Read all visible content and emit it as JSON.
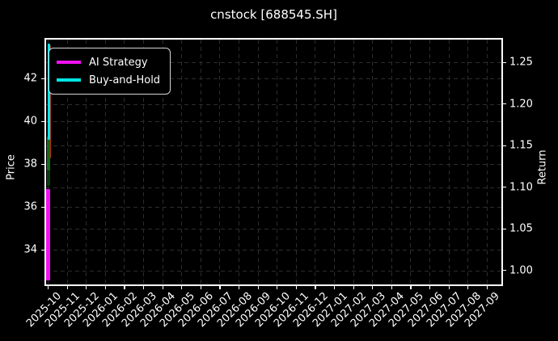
{
  "figure": {
    "title": "cnstock [688545.SH]",
    "background": "#000000",
    "spine_color": "#ffffff",
    "grid_color": "#2d2d2d"
  },
  "axes": {
    "left": {
      "label": "Price",
      "tick_labels": [
        "42",
        "40",
        "38",
        "36",
        "34"
      ]
    },
    "right": {
      "label": "Return",
      "tick_labels": [
        "1.25",
        "1.20",
        "1.15",
        "1.10",
        "1.05",
        "1.00"
      ]
    },
    "x": {
      "tick_labels": [
        "2025-10",
        "2025-11",
        "2025-12",
        "2026-01",
        "2026-02",
        "2026-03",
        "2026-04",
        "2026-05",
        "2026-06",
        "2026-07",
        "2026-08",
        "2026-09",
        "2026-10",
        "2026-11",
        "2026-12",
        "2027-01",
        "2027-02",
        "2027-03",
        "2027-04",
        "2027-05",
        "2027-06",
        "2027-07",
        "2027-08",
        "2027-09"
      ]
    }
  },
  "legend": {
    "items": [
      {
        "label": "AI Strategy",
        "color": "#f411f4"
      },
      {
        "label": "Buy-and-Hold",
        "color": "#00e5e5"
      }
    ]
  },
  "chart_data": {
    "type": "line",
    "title": "cnstock [688545.SH]",
    "grid": true,
    "legend_position": "upper left",
    "x_axis": {
      "range": [
        "2025-10",
        "2027-09"
      ],
      "tick_interval": "1 month"
    },
    "left_axis": {
      "label": "Price",
      "ticks": [
        42,
        40,
        38,
        36,
        34
      ],
      "approx_limits": [
        32.4,
        43.9
      ]
    },
    "right_axis": {
      "label": "Return",
      "ticks": [
        1.25,
        1.2,
        1.15,
        1.1,
        1.05,
        1.0
      ],
      "approx_limits": [
        0.98,
        1.28
      ]
    },
    "note_visible_content": "All plotted data is compressed into a narrow vertical band at the far left (early 2025-10); the rest of the 2-year x-range is empty.",
    "series": [
      {
        "name": "AI Strategy",
        "axis": "right",
        "style": "line",
        "color": "#f411f4",
        "x_extent": "2025-10",
        "value_range": [
          0.988,
          1.098
        ]
      },
      {
        "name": "Buy-and-Hold",
        "axis": "right",
        "style": "line",
        "color": "#00e5e5",
        "x_extent": "2025-10",
        "value_range": [
          1.157,
          1.272
        ]
      },
      {
        "name": "price-candles",
        "axis": "left",
        "style": "candlestick",
        "up_color": "#127017",
        "up_color_dark": "#07400c",
        "down_color": "#c3271b",
        "x_extent": "2025-10",
        "body_price_range": [
          36.98,
          39.28
        ],
        "wick_price_range": [
          38.25,
          43.55
        ]
      }
    ],
    "marks": [
      {
        "name": "candle-wick",
        "axis": "left",
        "color": "#c3271b",
        "v_hi": 43.55,
        "v_lo": 38.25
      },
      {
        "name": "up-candles",
        "axis": "left",
        "color": "#127017",
        "v_hi": 39.28,
        "v_lo": 37.68
      },
      {
        "name": "up-candles-dark",
        "axis": "left",
        "color": "#07400c",
        "v_hi": 37.68,
        "v_lo": 36.98
      },
      {
        "name": "buy-and-hold-line",
        "axis": "right",
        "color": "#00e8e8",
        "v_hi": 1.272,
        "v_lo": 1.157
      },
      {
        "name": "ai-strategy-line",
        "axis": "right",
        "color": "#f411f4",
        "v_hi": 1.098,
        "v_lo": 0.988
      }
    ]
  }
}
